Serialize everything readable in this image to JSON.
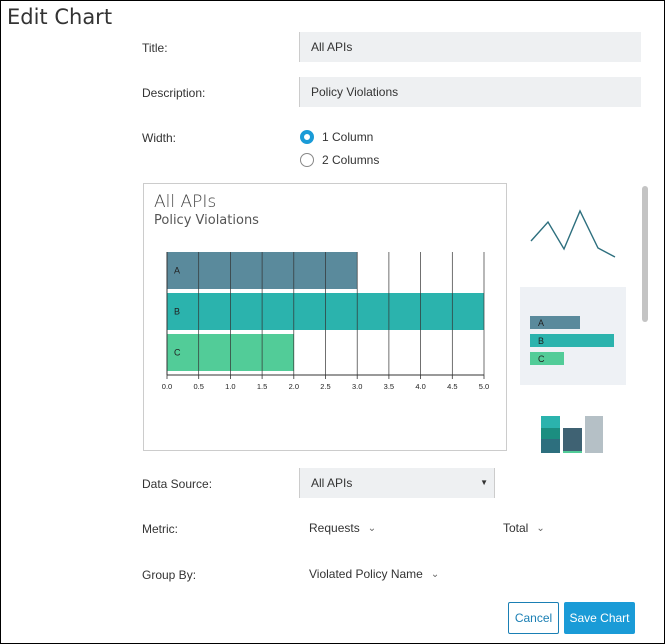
{
  "page_title": "Edit Chart",
  "form": {
    "title_label": "Title:",
    "title_value": "All APIs",
    "description_label": "Description:",
    "description_value": "Policy Violations",
    "width_label": "Width:",
    "width_options": [
      {
        "label": "1 Column",
        "selected": true
      },
      {
        "label": "2 Columns",
        "selected": false
      }
    ],
    "data_source_label": "Data Source:",
    "data_source_value": "All APIs",
    "metric_label": "Metric:",
    "metric_value": "Requests",
    "aggregation_value": "Total",
    "group_by_label": "Group By:",
    "group_by_value": "Violated Policy Name"
  },
  "preview": {
    "title": "All APIs",
    "subtitle": "Policy Violations"
  },
  "chart_data": {
    "type": "bar",
    "orientation": "horizontal",
    "title": "All APIs",
    "subtitle": "Policy Violations",
    "categories": [
      "A",
      "B",
      "C"
    ],
    "values": [
      3.0,
      5.0,
      2.0
    ],
    "colors": [
      "#5a8a9c",
      "#2bb3ad",
      "#52cc98"
    ],
    "xlim": [
      0,
      5
    ],
    "x_ticks": [
      "0.0",
      "0.5",
      "1.0",
      "1.5",
      "2.0",
      "2.5",
      "3.0",
      "3.5",
      "4.0",
      "4.5",
      "5.0"
    ],
    "grid": true
  },
  "chart_types": {
    "line_icon": "line-chart-thumbnail",
    "bar_icon": "bar-chart-thumbnail",
    "bar_labels": [
      "A",
      "B",
      "C"
    ],
    "stacked_icon": "stacked-bar-thumbnail"
  },
  "buttons": {
    "cancel": "Cancel",
    "save": "Save Chart"
  },
  "colors": {
    "accent": "#1a9bd7",
    "field_bg": "#eef0f2"
  }
}
